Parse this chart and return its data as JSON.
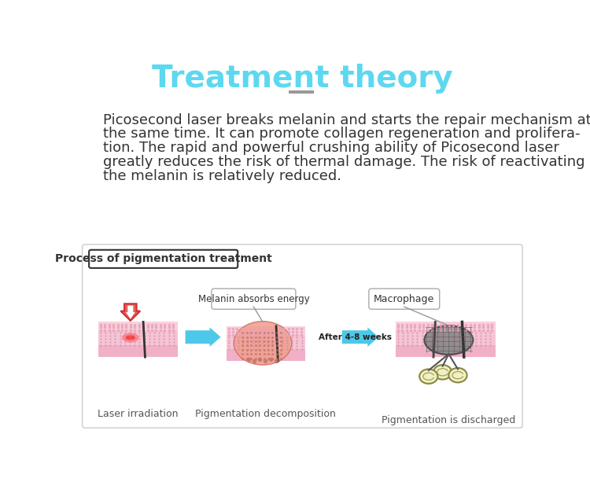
{
  "title": "Treatment theory",
  "title_color": "#5DD8F0",
  "title_fontsize": 28,
  "underline_color": "#999999",
  "body_lines": [
    "Picosecond laser breaks melanin and starts the repair mechanism at",
    "the same time. It can promote collagen regeneration and prolifera-",
    "tion. The rapid and powerful crushing ability of Picosecond laser",
    "greatly reduces the risk of thermal damage. The risk of reactivating",
    "the melanin is relatively reduced."
  ],
  "body_color": "#333333",
  "body_fontsize": 13,
  "bg_color": "#ffffff",
  "box_title": "Process of pigmentation treatment",
  "label1": "Laser irradiation",
  "label2": "Pigmentation decomposition",
  "label3": "Pigmentation is discharged",
  "callout1": "Melanin absorbs energy",
  "callout2": "Macrophage",
  "arrow_label": "After 4-8 weeks",
  "arrow_color": "#4DC8E8",
  "skin_top": "#F9D0DC",
  "skin_mid": "#F5C5D5",
  "skin_deep": "#F0B0C8",
  "skin_dot": "#D080A0",
  "skin_sq": "#E8A0B8",
  "pigment_fill": "#F0A090",
  "pigment_edge": "#D07060",
  "pigment_dot": "#C07060",
  "laser_fill": "#E86060",
  "laser_edge": "#CC3030",
  "mac_fill": "#888888",
  "mac_edge": "#444444",
  "cell_fill": "#F0F0C0",
  "cell_edge": "#888844"
}
